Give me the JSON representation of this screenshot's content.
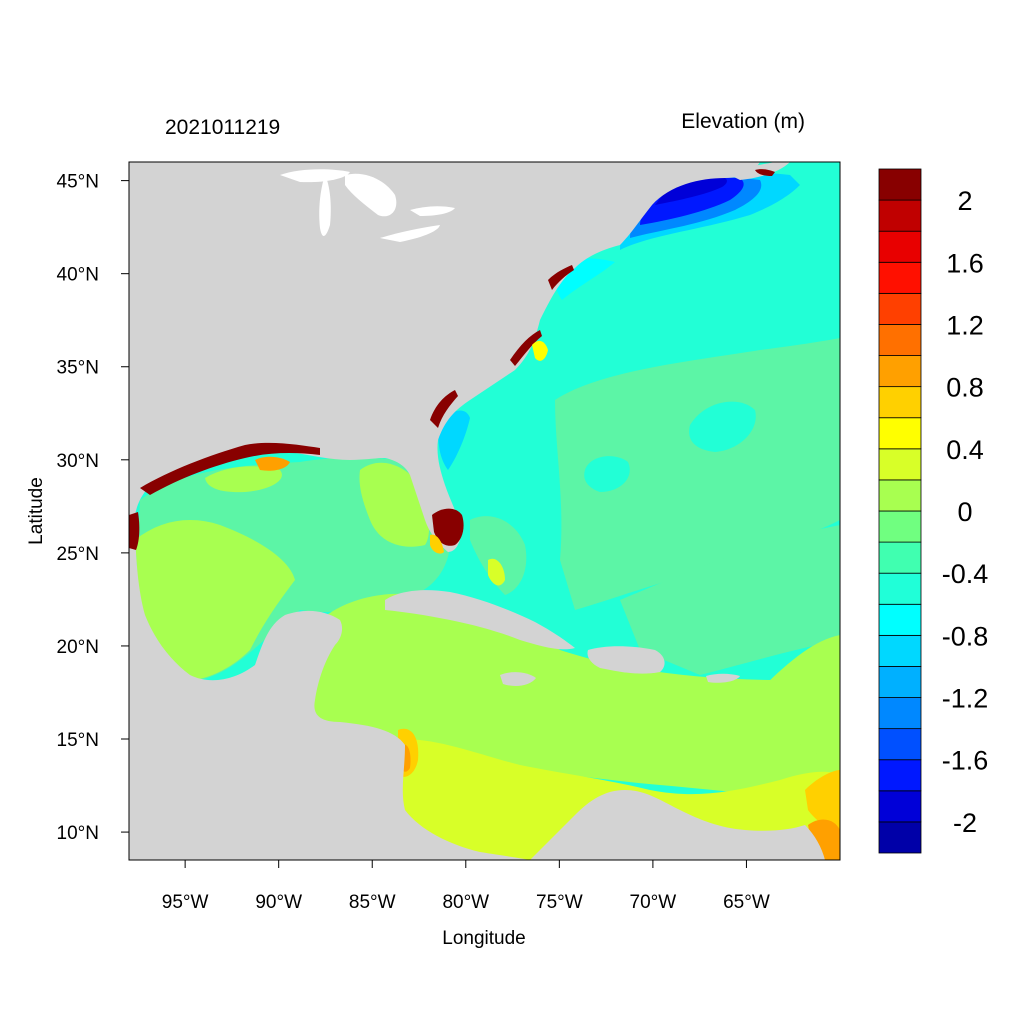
{
  "plot": {
    "left_title": "2021011219",
    "right_title": "Elevation (m)",
    "xlabel": "Longitude",
    "ylabel": "Latitude",
    "lon_range": [
      -98,
      -60
    ],
    "lat_range": [
      8.5,
      46
    ],
    "x_ticks": [
      {
        "value": -95,
        "label": "95°W"
      },
      {
        "value": -90,
        "label": "90°W"
      },
      {
        "value": -85,
        "label": "85°W"
      },
      {
        "value": -80,
        "label": "80°W"
      },
      {
        "value": -75,
        "label": "75°W"
      },
      {
        "value": -70,
        "label": "70°W"
      },
      {
        "value": -65,
        "label": "65°W"
      }
    ],
    "y_ticks": [
      {
        "value": 45,
        "label": "45°N"
      },
      {
        "value": 40,
        "label": "40°N"
      },
      {
        "value": 35,
        "label": "35°N"
      },
      {
        "value": 30,
        "label": "30°N"
      },
      {
        "value": 25,
        "label": "25°N"
      },
      {
        "value": 20,
        "label": "20°N"
      },
      {
        "value": 15,
        "label": "15°N"
      },
      {
        "value": 10,
        "label": "10°N"
      }
    ],
    "land_color": "#d3d3d3"
  },
  "colorbar": {
    "levels": [
      -2.2,
      -2,
      -1.8,
      -1.6,
      -1.4,
      -1.2,
      -1,
      -0.8,
      -0.6,
      -0.4,
      -0.2,
      0,
      0.2,
      0.4,
      0.6,
      0.8,
      1,
      1.2,
      1.4,
      1.6,
      1.8,
      2,
      2.2
    ],
    "colors": [
      "#0000a8",
      "#0000d8",
      "#0018ff",
      "#0050ff",
      "#0088ff",
      "#00b0ff",
      "#00d8ff",
      "#00ffff",
      "#20ffd8",
      "#40ffb0",
      "#70ff80",
      "#a8ff50",
      "#d8ff28",
      "#ffff00",
      "#ffd000",
      "#ffa000",
      "#ff7000",
      "#ff4000",
      "#ff1000",
      "#e80000",
      "#c00000",
      "#880000"
    ],
    "labels": [
      {
        "value": 2,
        "label": "2"
      },
      {
        "value": 1.6,
        "label": "1.6"
      },
      {
        "value": 1.2,
        "label": "1.2"
      },
      {
        "value": 0.8,
        "label": "0.8"
      },
      {
        "value": 0.4,
        "label": "0.4"
      },
      {
        "value": 0,
        "label": "0"
      },
      {
        "value": -0.4,
        "label": "-0.4"
      },
      {
        "value": -0.8,
        "label": "-0.8"
      },
      {
        "value": -1.2,
        "label": "-1.2"
      },
      {
        "value": -1.6,
        "label": "-1.6"
      },
      {
        "value": -2,
        "label": "-2"
      }
    ]
  }
}
